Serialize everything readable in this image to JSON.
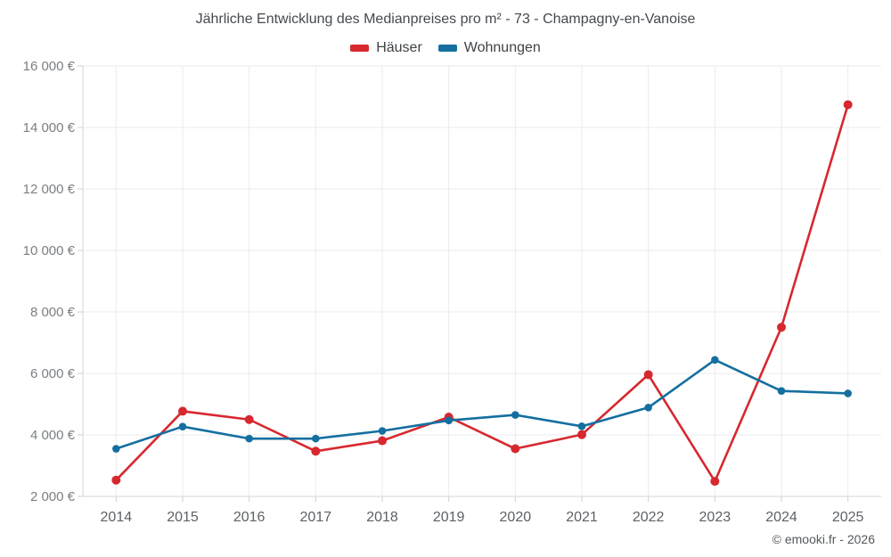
{
  "footer": {
    "text": "© emooki.fr - 2026"
  },
  "chart_data": {
    "type": "line",
    "title": "Jährliche Entwicklung des Medianpreises pro m² - 73 - Champagny-en-Vanoise",
    "categories": [
      "2014",
      "2015",
      "2016",
      "2017",
      "2018",
      "2019",
      "2020",
      "2021",
      "2022",
      "2023",
      "2024",
      "2025"
    ],
    "series": [
      {
        "name": "Häuser",
        "color": "#d7282f",
        "values": [
          2530,
          4770,
          4500,
          3470,
          3810,
          4580,
          3550,
          4010,
          5960,
          2490,
          7500,
          14740
        ]
      },
      {
        "name": "Wohnungen",
        "color": "#146fa0",
        "values": [
          3550,
          4270,
          3880,
          3880,
          4130,
          4470,
          4650,
          4280,
          4890,
          6440,
          5430,
          5350
        ]
      }
    ],
    "xlabel": "",
    "ylabel": "",
    "ylim": [
      2000,
      16000
    ],
    "ytick_step": 2000,
    "ytick_suffix": " €",
    "grid": true,
    "legend_position": "top",
    "colors": {
      "grid_line": "#eaebec",
      "axis_line": "#d3d6d8",
      "tick_line": "#cdd1d4",
      "y_label": "#7b7f83",
      "x_label": "#5d6165",
      "title": "#45494e"
    }
  }
}
